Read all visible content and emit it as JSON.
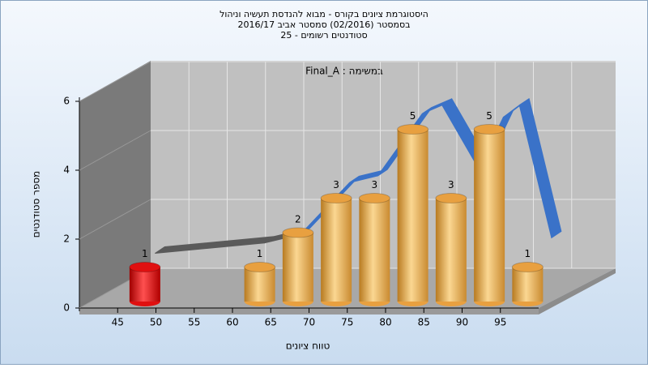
{
  "chart_data": {
    "type": "bar3d",
    "title": [
      "היסטוגרמת ציונים בקורס - מבוא להנדסת תעשיה וניהול",
      "בסמסטר (02/2016)  סמסטר אביב 2016/17",
      "סטודנטים רשומים - 25"
    ],
    "annotation": "Final_A : במשימה",
    "x_label": "טווח ציונים",
    "y_label": "מספר סטודנטים",
    "x": [
      47.5,
      62.5,
      67.5,
      72.5,
      77.5,
      82.5,
      87.5,
      92.5,
      97.5
    ],
    "values": [
      1,
      1,
      2,
      3,
      3,
      5,
      3,
      5,
      1
    ],
    "colors": [
      "#e01010",
      "#e8a040",
      "#e8a040",
      "#e8a040",
      "#e8a040",
      "#e8a040",
      "#e8a040",
      "#e8a040",
      "#e8a040"
    ],
    "xlim": [
      40,
      100
    ],
    "xticks": [
      45,
      50,
      55,
      60,
      65,
      70,
      75,
      80,
      85,
      90,
      95
    ],
    "ylim": [
      0,
      6
    ],
    "yticks": [
      0,
      2,
      4,
      6
    ],
    "grid": true,
    "curve": {
      "x": [
        41.5,
        55.8,
        60.5,
        66.9,
        70.6,
        76.4,
        79,
        83.8,
        87,
        89.1,
        93.3
      ],
      "values": [
        0.55,
        0.85,
        1.1,
        2.6,
        2.8,
        4.6,
        4.85,
        3.0,
        4.5,
        4.85,
        1.0
      ],
      "segment_colors": [
        "#5a5a5a",
        "#5a5a5a",
        "#3a72c8",
        "#3a72c8",
        "#3a72c8",
        "#3a72c8",
        "#3a72c8",
        "#3a72c8",
        "#3a72c8",
        "#3a72c8"
      ]
    }
  }
}
